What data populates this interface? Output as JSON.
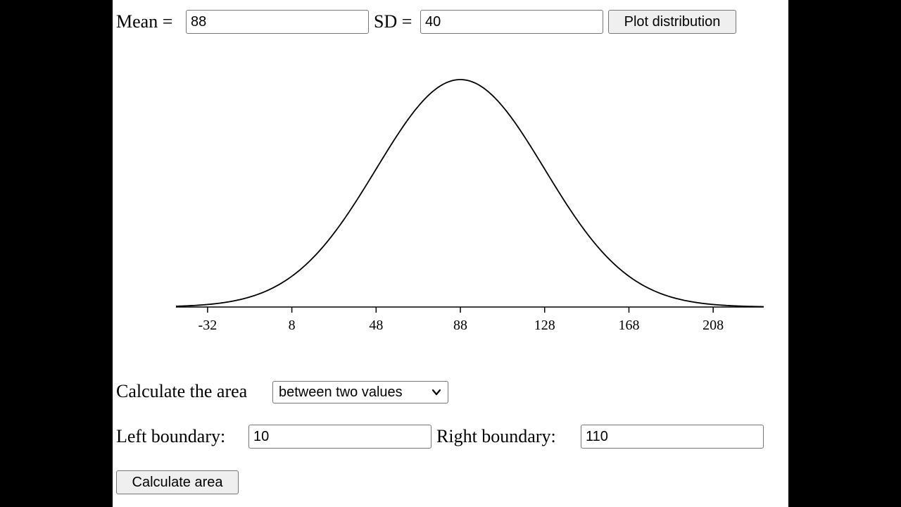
{
  "controls": {
    "mean_label": "Mean =",
    "mean_value": "88",
    "sd_label": "SD =",
    "sd_value": "40",
    "plot_button": "Plot distribution"
  },
  "area": {
    "calc_label": "Calculate the area",
    "mode_selected": "between two values",
    "left_label": "Left boundary:",
    "left_value": "10",
    "right_label": "Right boundary:",
    "right_value": "110",
    "calc_button": "Calculate area"
  },
  "chart_data": {
    "type": "line",
    "distribution": "normal",
    "mean": 88,
    "sd": 40,
    "xlim": [
      -47,
      232
    ],
    "ticks": [
      -32,
      8,
      48,
      88,
      128,
      168,
      208
    ],
    "tick_labels": [
      "-32",
      "8",
      "48",
      "88",
      "128",
      "168",
      "208"
    ],
    "title": "",
    "xlabel": "",
    "ylabel": "",
    "grid": false,
    "line_color": "#000000"
  }
}
